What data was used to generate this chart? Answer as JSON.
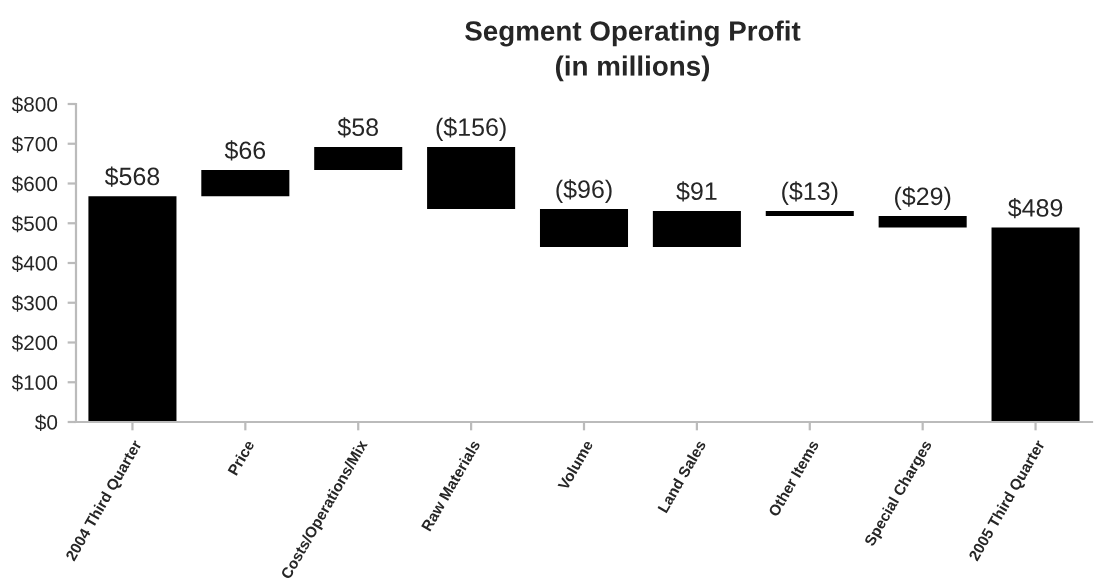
{
  "chart_data": {
    "type": "bar",
    "title": "Segment Operating Profit",
    "subtitle": "(in millions)",
    "categories": [
      "2004 Third Quarter",
      "Price",
      "Costs/Operations/Mix",
      "Raw Materials",
      "Volume",
      "Land Sales",
      "Other Items",
      "Special Charges",
      "2005 Third Quarter"
    ],
    "values": [
      568,
      66,
      58,
      -156,
      -96,
      91,
      -13,
      -29,
      489
    ],
    "base": [
      0,
      568,
      634,
      692,
      536,
      440,
      531,
      518,
      0
    ],
    "value_labels": [
      "$568",
      "$66",
      "$58",
      "($156)",
      "($96)",
      "$91",
      "($13)",
      "($29)",
      "$489"
    ],
    "color": "#000000",
    "ylim": [
      0,
      800
    ],
    "yticks": [
      {
        "value": 0,
        "label": "$0"
      },
      {
        "value": 100,
        "label": "$100"
      },
      {
        "value": 200,
        "label": "$200"
      },
      {
        "value": 300,
        "label": "$300"
      },
      {
        "value": 400,
        "label": "$400"
      },
      {
        "value": 500,
        "label": "$500"
      },
      {
        "value": 600,
        "label": "$600"
      },
      {
        "value": 700,
        "label": "$700"
      },
      {
        "value": 800,
        "label": "$800"
      }
    ],
    "grid": false,
    "legend": false
  }
}
